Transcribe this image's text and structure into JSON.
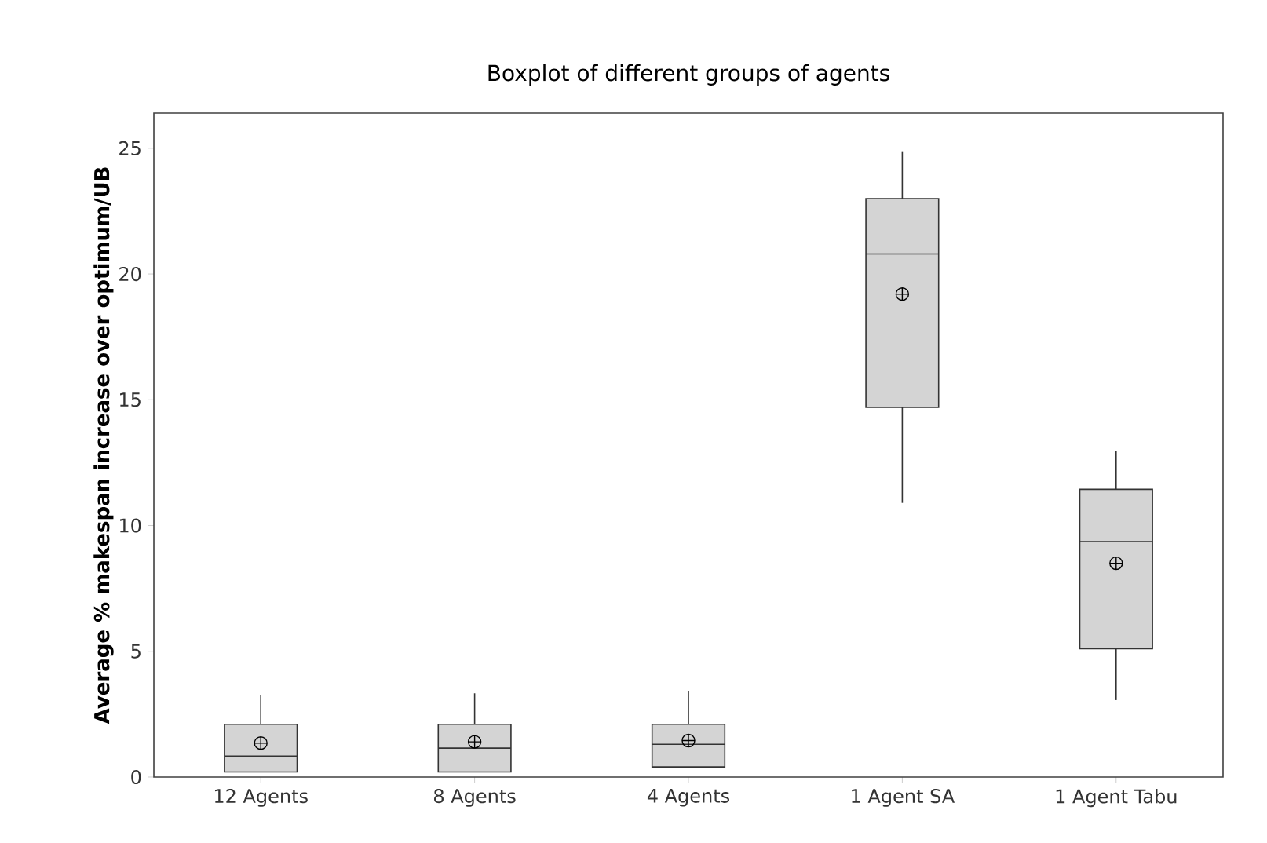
{
  "chart_data": {
    "type": "box",
    "title": "Boxplot of different groups of agents",
    "ylabel": "Average % makespan increase over optimum/UB",
    "categories": [
      "12 Agents",
      "8 Agents",
      "4 Agents",
      "1 Agent SA",
      "1 Agent Tabu"
    ],
    "color": "#d4d4d4",
    "boxes": [
      {
        "low": 0.2,
        "q1": 0.2,
        "median": 0.83,
        "q3": 2.1,
        "high": 3.27,
        "mean": 1.35
      },
      {
        "low": 0.2,
        "q1": 0.2,
        "median": 1.15,
        "q3": 2.1,
        "high": 3.33,
        "mean": 1.4
      },
      {
        "low": 0.4,
        "q1": 0.4,
        "median": 1.3,
        "q3": 2.1,
        "high": 3.43,
        "mean": 1.45
      },
      {
        "low": 10.9,
        "q1": 14.7,
        "median": 20.8,
        "q3": 23.0,
        "high": 24.85,
        "mean": 19.2
      },
      {
        "low": 3.06,
        "q1": 5.1,
        "median": 9.36,
        "q3": 11.44,
        "high": 12.96,
        "mean": 8.5
      }
    ],
    "ylim": [
      0,
      26.4
    ],
    "yticks": [
      0,
      5,
      10,
      15,
      20,
      25
    ]
  }
}
